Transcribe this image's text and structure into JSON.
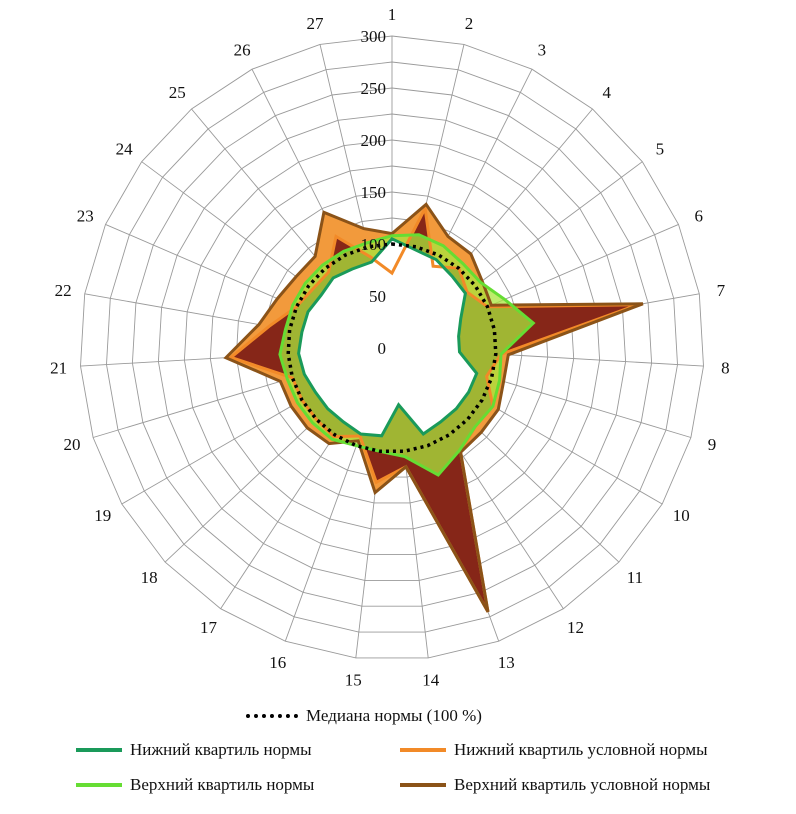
{
  "chart_data": {
    "type": "radar",
    "categories": [
      "1",
      "2",
      "3",
      "4",
      "5",
      "6",
      "7",
      "8",
      "9",
      "10",
      "11",
      "12",
      "13",
      "14",
      "15",
      "16",
      "17",
      "18",
      "19",
      "20",
      "21",
      "22",
      "23",
      "24",
      "25",
      "26",
      "27"
    ],
    "radial_ticks": [
      "0",
      "50",
      "100",
      "150",
      "200",
      "250",
      "300"
    ],
    "rmax": 300,
    "series": [
      {
        "name": "Медиана нормы (100 %)",
        "color": "#000000",
        "style": "dotted",
        "values": [
          100,
          100,
          100,
          100,
          100,
          100,
          100,
          100,
          100,
          100,
          100,
          100,
          100,
          100,
          100,
          100,
          100,
          100,
          100,
          100,
          100,
          100,
          100,
          100,
          100,
          100,
          100
        ]
      },
      {
        "name": "Нижний квартиль нормы",
        "color": "#1a9a5a",
        "style": "solid",
        "values": [
          105,
          97,
          95,
          90,
          88,
          72,
          65,
          65,
          85,
          85,
          85,
          85,
          88,
          55,
          85,
          88,
          85,
          85,
          85,
          88,
          90,
          88,
          88,
          85,
          88,
          85,
          85
        ]
      },
      {
        "name": "Верхний квартиль нормы",
        "color": "#66dd33",
        "style": "solid",
        "values": [
          108,
          112,
          110,
          106,
          106,
          118,
          138,
          105,
          108,
          112,
          110,
          118,
          130,
          105,
          100,
          100,
          105,
          105,
          105,
          105,
          108,
          104,
          104,
          104,
          104,
          104,
          104
        ]
      },
      {
        "name": "Нижний квартиль условной нормы",
        "color": "#f28a28",
        "style": "solid",
        "values": [
          72,
          138,
          88,
          100,
          90,
          100,
          240,
          105,
          95,
          112,
          110,
          120,
          270,
          115,
          130,
          90,
          102,
          100,
          100,
          100,
          155,
          120,
          100,
          95,
          95,
          120,
          90
        ]
      },
      {
        "name": "Верхний квартиль условной нормы",
        "color": "#8b5318",
        "style": "solid",
        "values": [
          110,
          142,
          120,
          118,
          108,
          104,
          245,
          112,
          112,
          118,
          118,
          120,
          270,
          115,
          140,
          95,
          110,
          112,
          112,
          112,
          160,
          130,
          120,
          115,
          115,
          146,
          118
        ]
      }
    ]
  },
  "legend": {
    "median": "Медиана нормы (100 %)",
    "lower_norm": "Нижний квартиль нормы",
    "upper_norm": "Верхний квартиль нормы",
    "lower_cond": "Нижний квартиль условной нормы",
    "upper_cond": "Верхний квартиль условной нормы"
  }
}
